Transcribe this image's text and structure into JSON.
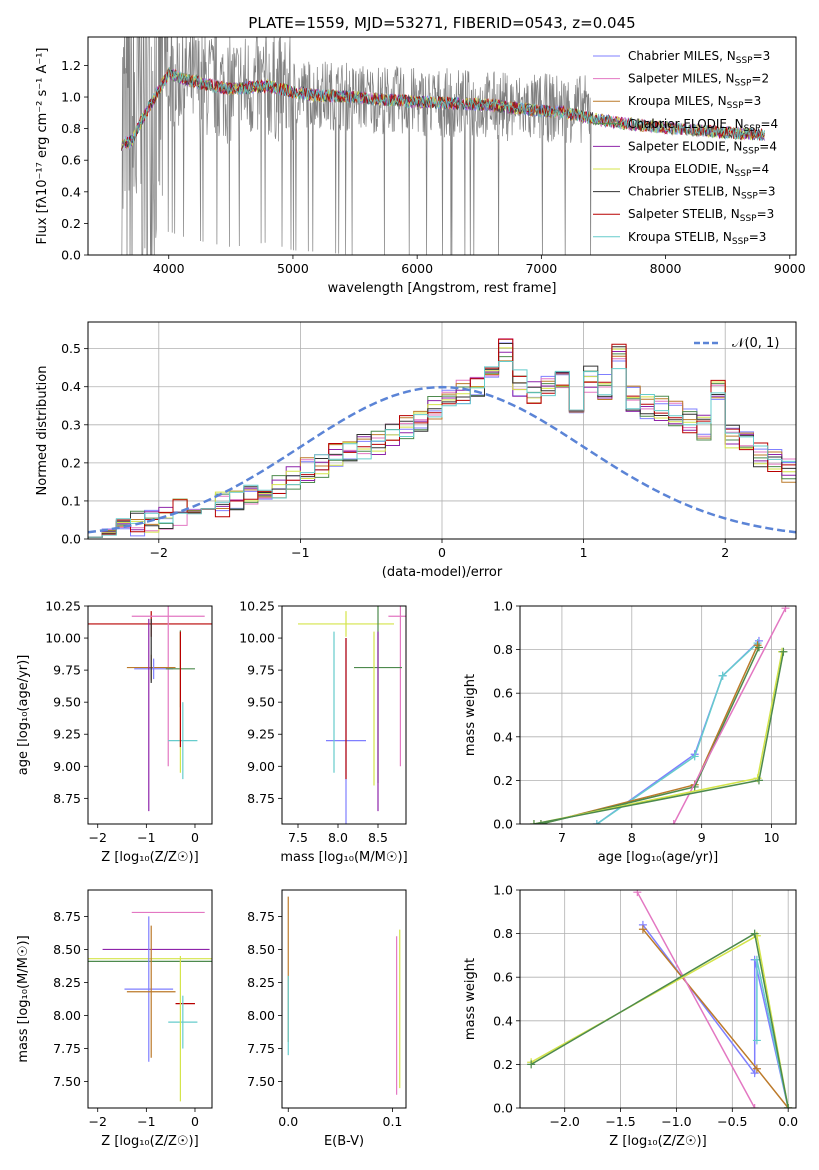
{
  "series_colors": [
    "#7f7fff",
    "#e377c2",
    "#bc7a2a",
    "#4d8a4d",
    "#8e24aa",
    "#d4e44a",
    "#333333",
    "#b80000",
    "#66cccc"
  ],
  "chart_data": [
    {
      "id": "spectrum",
      "type": "line",
      "title": "PLATE=1559, MJD=53271, FIBERID=0543, z=0.045",
      "xlabel": "wavelength [Angstrom, rest frame]",
      "ylabel": "Flux [fλ10⁻¹⁷ erg cm⁻² s⁻¹ A⁻¹]",
      "xlim": [
        3350,
        9050
      ],
      "ylim": [
        0,
        1.38
      ],
      "xticks": [
        4000,
        5000,
        6000,
        7000,
        8000,
        9000
      ],
      "yticks": [
        0.0,
        0.2,
        0.4,
        0.6,
        0.8,
        1.0,
        1.2
      ],
      "grid": false,
      "legend_position": "upper-right",
      "legend": [
        {
          "label": "Chabrier MILES, N",
          "sub": "SSP",
          "suffix": "=3"
        },
        {
          "label": "Salpeter MILES, N",
          "sub": "SSP",
          "suffix": "=2"
        },
        {
          "label": "Kroupa MILES, N",
          "sub": "SSP",
          "suffix": "=3"
        },
        {
          "label": "Chabrier ELODIE, N",
          "sub": "SSP",
          "suffix": "=4"
        },
        {
          "label": "Salpeter ELODIE, N",
          "sub": "SSP",
          "suffix": "=4"
        },
        {
          "label": "Kroupa ELODIE, N",
          "sub": "SSP",
          "suffix": "=4"
        },
        {
          "label": "Chabrier STELIB, N",
          "sub": "SSP",
          "suffix": "=3"
        },
        {
          "label": "Salpeter STELIB, N",
          "sub": "SSP",
          "suffix": "=3"
        },
        {
          "label": "Kroupa STELIB, N",
          "sub": "SSP",
          "suffix": "=3"
        }
      ],
      "data_envelope": {
        "description_points_x": [
          3620,
          3700,
          3800,
          3900,
          4000,
          4100,
          4300,
          4500,
          4800,
          5000,
          5200,
          5500,
          5800,
          6000,
          6300,
          6600,
          6900,
          7200,
          7400
        ],
        "data_y": [
          0.7,
          0.72,
          0.9,
          1.05,
          1.15,
          1.12,
          1.08,
          1.05,
          1.08,
          1.03,
          1.02,
          1.0,
          0.98,
          0.97,
          0.96,
          0.95,
          0.93,
          0.93,
          0.92
        ],
        "model_x": [
          3620,
          3700,
          3800,
          3900,
          4000,
          4100,
          4300,
          4500,
          4800,
          5000,
          5200,
          5500,
          5800,
          6000,
          6300,
          6600,
          6900,
          7200,
          7500,
          7800,
          8100,
          8400,
          8800
        ],
        "model_y": [
          0.7,
          0.72,
          0.88,
          1.02,
          1.15,
          1.12,
          1.08,
          1.05,
          1.07,
          1.03,
          1.01,
          1.0,
          0.98,
          0.97,
          0.96,
          0.95,
          0.92,
          0.9,
          0.85,
          0.82,
          0.8,
          0.78,
          0.76
        ]
      }
    },
    {
      "id": "residuals",
      "type": "step",
      "xlabel": "(data-model)/error",
      "ylabel": "Normed distribution",
      "xlim": [
        -2.5,
        2.5
      ],
      "ylim": [
        0,
        0.57
      ],
      "xticks": [
        -2,
        -1,
        0,
        1,
        2
      ],
      "yticks": [
        0.0,
        0.1,
        0.2,
        0.3,
        0.4,
        0.5
      ],
      "grid": true,
      "legend_position": "upper-right",
      "legend_label": "𝒩(0, 1)",
      "bin_width": 0.1,
      "bin_start": -2.5,
      "hist_values": [
        0.02,
        0.03,
        0.04,
        0.04,
        0.05,
        0.06,
        0.07,
        0.08,
        0.08,
        0.09,
        0.1,
        0.11,
        0.13,
        0.14,
        0.16,
        0.18,
        0.19,
        0.22,
        0.23,
        0.24,
        0.25,
        0.27,
        0.29,
        0.31,
        0.35,
        0.37,
        0.39,
        0.4,
        0.42,
        0.5,
        0.41,
        0.38,
        0.4,
        0.43,
        0.36,
        0.42,
        0.4,
        0.48,
        0.37,
        0.35,
        0.34,
        0.33,
        0.31,
        0.29,
        0.39,
        0.27,
        0.25,
        0.22,
        0.2,
        0.18
      ]
    },
    {
      "id": "age-vs-Z",
      "type": "errorbar",
      "xlabel": "Z [log₁₀(Z/Z☉)]",
      "ylabel": "age  [log₁₀(age/yr)]",
      "xlim": [
        -2.2,
        0.35
      ],
      "ylim": [
        8.55,
        10.25
      ],
      "xticks": [
        -2,
        -1,
        0
      ],
      "yticks": [
        8.75,
        9.0,
        9.25,
        9.5,
        9.75,
        10.0,
        10.25
      ],
      "points": [
        {
          "x": -0.9,
          "y": 10.11,
          "xerr": 2.0,
          "yerr": 0.1,
          "s": 7
        },
        {
          "x": -0.55,
          "y": 10.17,
          "xerr": 0.75,
          "yerr": 1.17,
          "s": 1
        },
        {
          "x": -0.9,
          "y": 9.77,
          "xerr": 0.5,
          "yerr": 0.1,
          "s": 2
        },
        {
          "x": -0.85,
          "y": 9.76,
          "xerr": 0.4,
          "yerr": 0.08,
          "s": 0
        },
        {
          "x": -0.3,
          "y": 9.76,
          "xerr": 0.3,
          "yerr": 0.3,
          "s": 3
        },
        {
          "x": -0.25,
          "y": 9.2,
          "xerr": 0.3,
          "yerr": 0.3,
          "s": 8
        },
        {
          "x": -0.95,
          "y": 9.4,
          "xerr": 0.0,
          "yerr": 0.75,
          "s": 4
        },
        {
          "x": -0.3,
          "y": 9.5,
          "xerr": 0.0,
          "yerr": 0.55,
          "s": 5
        },
        {
          "x": -0.9,
          "y": 9.9,
          "xerr": 0.0,
          "yerr": 0.25,
          "s": 6
        },
        {
          "x": -0.3,
          "y": 9.6,
          "xerr": 0.0,
          "yerr": 0.45,
          "s": 7
        }
      ]
    },
    {
      "id": "age-vs-mass",
      "type": "errorbar",
      "xlabel": "mass [log₁₀(M/M☉)]",
      "ylabel": "",
      "xlim": [
        7.3,
        8.85
      ],
      "ylim": [
        8.55,
        10.25
      ],
      "xticks": [
        7.5,
        8.0,
        8.5
      ],
      "yticks": [
        8.75,
        9.0,
        9.25,
        9.5,
        9.75,
        10.0,
        10.25
      ],
      "points": [
        {
          "x": 8.1,
          "y": 10.11,
          "xerr": 0.6,
          "yerr": 0.1,
          "s": 5
        },
        {
          "x": 8.78,
          "y": 10.17,
          "xerr": 0.15,
          "yerr": 1.17,
          "s": 1
        },
        {
          "x": 8.5,
          "y": 9.77,
          "xerr": 0.3,
          "yerr": 0.9,
          "s": 3
        },
        {
          "x": 8.1,
          "y": 9.2,
          "xerr": 0.25,
          "yerr": 0.8,
          "s": 0
        },
        {
          "x": 7.95,
          "y": 9.5,
          "xerr": 0.0,
          "yerr": 0.55,
          "s": 8
        },
        {
          "x": 8.1,
          "y": 9.45,
          "xerr": 0.0,
          "yerr": 0.55,
          "s": 7
        },
        {
          "x": 8.5,
          "y": 9.35,
          "xerr": 0.0,
          "yerr": 0.7,
          "s": 4
        },
        {
          "x": 8.45,
          "y": 9.45,
          "xerr": 0.0,
          "yerr": 0.6,
          "s": 5
        }
      ]
    },
    {
      "id": "massweight-vs-age",
      "type": "line",
      "xlabel": "age  [log₁₀(age/yr)]",
      "ylabel": "mass weight",
      "xlim": [
        6.4,
        10.35
      ],
      "ylim": [
        0,
        1.0
      ],
      "xticks": [
        7,
        8,
        9,
        10
      ],
      "yticks": [
        0.0,
        0.2,
        0.4,
        0.6,
        0.8,
        1.0
      ],
      "grid": true,
      "series": [
        {
          "s": 0,
          "x": [
            7.5,
            8.9,
            9.3,
            9.82
          ],
          "y": [
            0.0,
            0.32,
            0.68,
            0.84
          ]
        },
        {
          "s": 8,
          "x": [
            7.5,
            8.9,
            9.3,
            9.8
          ],
          "y": [
            0.0,
            0.31,
            0.68,
            0.83
          ]
        },
        {
          "s": 2,
          "x": [
            6.7,
            8.9,
            9.8
          ],
          "y": [
            0.0,
            0.18,
            0.82
          ]
        },
        {
          "s": 3,
          "x": [
            6.7,
            8.9,
            9.82
          ],
          "y": [
            0.0,
            0.17,
            0.81
          ]
        },
        {
          "s": 1,
          "x": [
            8.6,
            10.2
          ],
          "y": [
            0.0,
            0.99
          ]
        },
        {
          "s": 5,
          "x": [
            6.6,
            9.8,
            10.15
          ],
          "y": [
            0.0,
            0.21,
            0.79
          ]
        },
        {
          "s": 3,
          "x": [
            6.6,
            9.82,
            10.17
          ],
          "y": [
            0.0,
            0.2,
            0.79
          ]
        }
      ]
    },
    {
      "id": "mass-vs-Z",
      "type": "errorbar",
      "xlabel": "Z [log₁₀(Z/Z☉)]",
      "ylabel": "mass [log₁₀(M/M☉)]",
      "xlim": [
        -2.2,
        0.35
      ],
      "ylim": [
        7.3,
        8.95
      ],
      "xticks": [
        -2,
        -1,
        0
      ],
      "yticks": [
        7.5,
        7.75,
        8.0,
        8.25,
        8.5,
        8.75
      ],
      "points": [
        {
          "x": -0.55,
          "y": 8.78,
          "xerr": 0.75,
          "yerr": 0.0,
          "s": 1
        },
        {
          "x": -0.8,
          "y": 8.5,
          "xerr": 1.1,
          "yerr": 0.0,
          "s": 4
        },
        {
          "x": -0.9,
          "y": 8.43,
          "xerr": 2.0,
          "yerr": 0.0,
          "s": 5
        },
        {
          "x": -1.0,
          "y": 8.41,
          "xerr": 1.8,
          "yerr": 0.0,
          "s": 3
        },
        {
          "x": -0.95,
          "y": 8.2,
          "xerr": 0.5,
          "yerr": 0.55,
          "s": 0
        },
        {
          "x": -0.9,
          "y": 8.18,
          "xerr": 0.5,
          "yerr": 0.5,
          "s": 2
        },
        {
          "x": -0.2,
          "y": 8.09,
          "xerr": 0.2,
          "yerr": 0.0,
          "s": 7
        },
        {
          "x": -0.25,
          "y": 7.95,
          "xerr": 0.3,
          "yerr": 0.2,
          "s": 8
        },
        {
          "x": -0.3,
          "y": 7.9,
          "xerr": 0.0,
          "yerr": 0.55,
          "s": 5
        }
      ]
    },
    {
      "id": "mass-vs-EBV",
      "type": "errorbar",
      "xlabel": "E(B-V)",
      "ylabel": "",
      "xlim": [
        -0.006,
        0.113
      ],
      "ylim": [
        7.3,
        8.95
      ],
      "xticks": [
        0.0,
        0.1
      ],
      "yticks": [
        7.5,
        7.75,
        8.0,
        8.25,
        8.5,
        8.75
      ],
      "points": [
        {
          "x": 0.0,
          "y": 8.35,
          "xerr": 0.0,
          "yerr": 0.55,
          "s": 2
        },
        {
          "x": 0.0,
          "y": 8.0,
          "xerr": 0.0,
          "yerr": 0.3,
          "s": 8
        },
        {
          "x": 0.104,
          "y": 8.0,
          "xerr": 0.0,
          "yerr": 0.6,
          "s": 1
        },
        {
          "x": 0.107,
          "y": 8.05,
          "xerr": 0.0,
          "yerr": 0.6,
          "s": 5
        }
      ]
    },
    {
      "id": "massweight-vs-Z",
      "type": "line",
      "xlabel": "Z [log₁₀(Z/Z☉)]",
      "ylabel": "mass weight",
      "xlim": [
        -2.4,
        0.07
      ],
      "ylim": [
        0,
        1.0
      ],
      "xticks": [
        -2.0,
        -1.5,
        -1.0,
        -0.5,
        0.0
      ],
      "yticks": [
        0.0,
        0.2,
        0.4,
        0.6,
        0.8,
        1.0
      ],
      "grid": true,
      "series": [
        {
          "s": 0,
          "x": [
            -1.3,
            -0.3,
            -0.3,
            0.0
          ],
          "y": [
            0.84,
            0.16,
            0.68,
            0.0
          ]
        },
        {
          "s": 8,
          "x": [
            -0.28,
            -0.28,
            0.0
          ],
          "y": [
            0.31,
            0.68,
            0.0
          ]
        },
        {
          "s": 2,
          "x": [
            -1.3,
            -0.28,
            0.0
          ],
          "y": [
            0.82,
            0.18,
            0.0
          ]
        },
        {
          "s": 1,
          "x": [
            -1.35,
            -0.3
          ],
          "y": [
            0.99,
            0.0
          ]
        },
        {
          "s": 5,
          "x": [
            -2.3,
            -0.28,
            0.0
          ],
          "y": [
            0.21,
            0.79,
            0.0
          ]
        },
        {
          "s": 3,
          "x": [
            -2.3,
            -0.3,
            0.0
          ],
          "y": [
            0.2,
            0.8,
            0.0
          ]
        }
      ]
    }
  ]
}
